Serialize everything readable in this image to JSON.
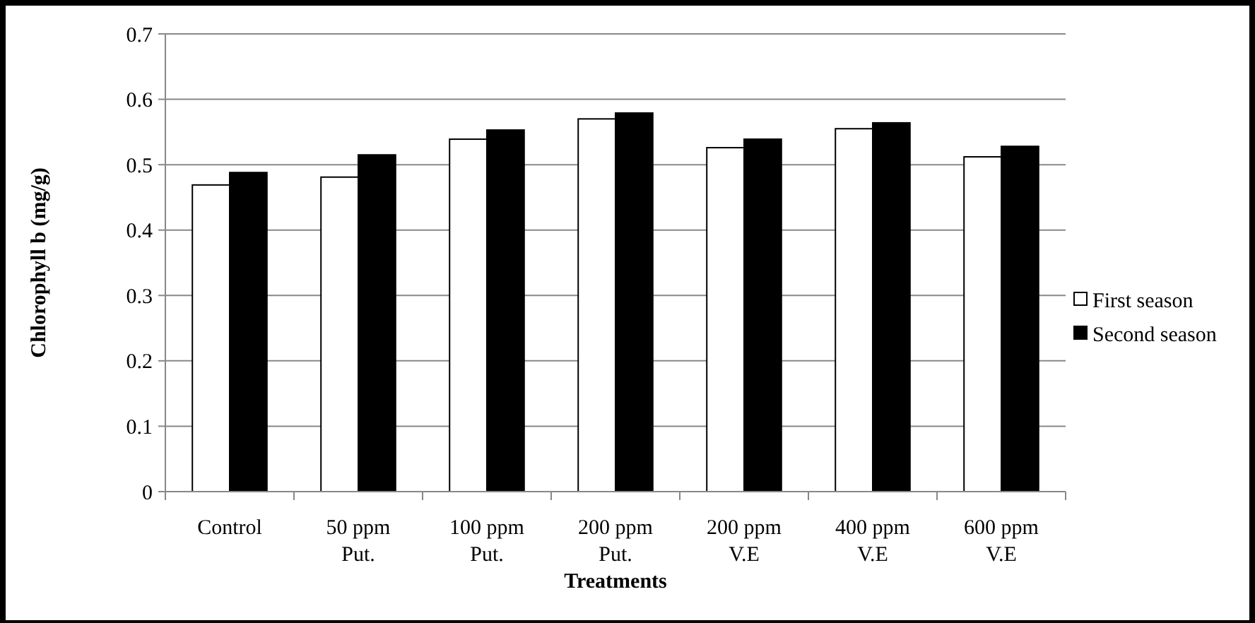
{
  "chart_data": {
    "type": "bar",
    "xlabel": "Treatments",
    "ylabel": "Chlorophyll b (mg/g)",
    "categories": [
      "Control",
      "50 ppm\nPut.",
      "100 ppm\nPut.",
      "200 ppm\nPut.",
      "200 ppm\nV.E",
      "400 ppm\nV.E",
      "600 ppm\nV.E"
    ],
    "series": [
      {
        "name": "First season",
        "color": "#ffffff",
        "values": [
          0.469,
          0.481,
          0.539,
          0.57,
          0.526,
          0.555,
          0.512
        ]
      },
      {
        "name": "Second season",
        "color": "#000000",
        "values": [
          0.488,
          0.515,
          0.553,
          0.579,
          0.539,
          0.564,
          0.528
        ]
      }
    ],
    "ylim": [
      0,
      0.7
    ],
    "yticks": [
      0,
      0.1,
      0.2,
      0.3,
      0.4,
      0.5,
      0.6,
      0.7
    ],
    "grid": "y",
    "legend": "right"
  }
}
